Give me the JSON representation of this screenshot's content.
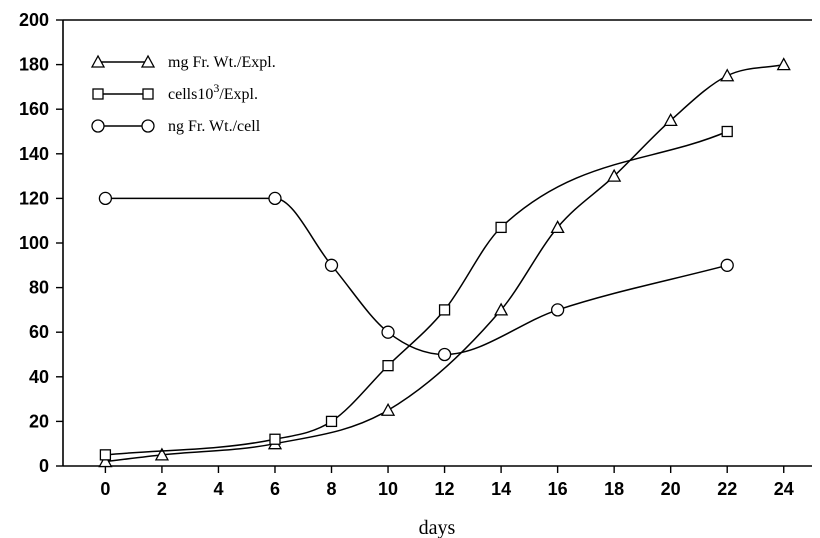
{
  "chart_data": {
    "type": "line",
    "xlabel": "days",
    "ylabel": "",
    "xlim": [
      -1.5,
      25
    ],
    "ylim": [
      0,
      200
    ],
    "xticks": [
      0,
      2,
      4,
      6,
      8,
      10,
      12,
      14,
      16,
      18,
      20,
      22,
      24
    ],
    "yticks": [
      0,
      20,
      40,
      60,
      80,
      100,
      120,
      140,
      160,
      180,
      200
    ],
    "legend_position": "top-left",
    "series": [
      {
        "name": "mg Fr. Wt./Expl.",
        "marker": "triangle",
        "x": [
          0,
          2,
          6,
          10,
          14,
          16,
          18,
          20,
          22,
          24
        ],
        "y": [
          2,
          5,
          10,
          25,
          70,
          107,
          130,
          155,
          175,
          180
        ]
      },
      {
        "name": "cells10³/Expl.",
        "name_parts": {
          "base": "cells10",
          "sup": "3",
          "tail": "/Expl."
        },
        "marker": "square",
        "x": [
          0,
          6,
          8,
          10,
          12,
          14,
          22
        ],
        "y": [
          5,
          12,
          20,
          45,
          70,
          107,
          150
        ]
      },
      {
        "name": "ng Fr. Wt./cell",
        "marker": "circle",
        "x": [
          0,
          6,
          8,
          10,
          12,
          16,
          22
        ],
        "y": [
          120,
          120,
          90,
          60,
          50,
          70,
          90
        ]
      }
    ]
  }
}
